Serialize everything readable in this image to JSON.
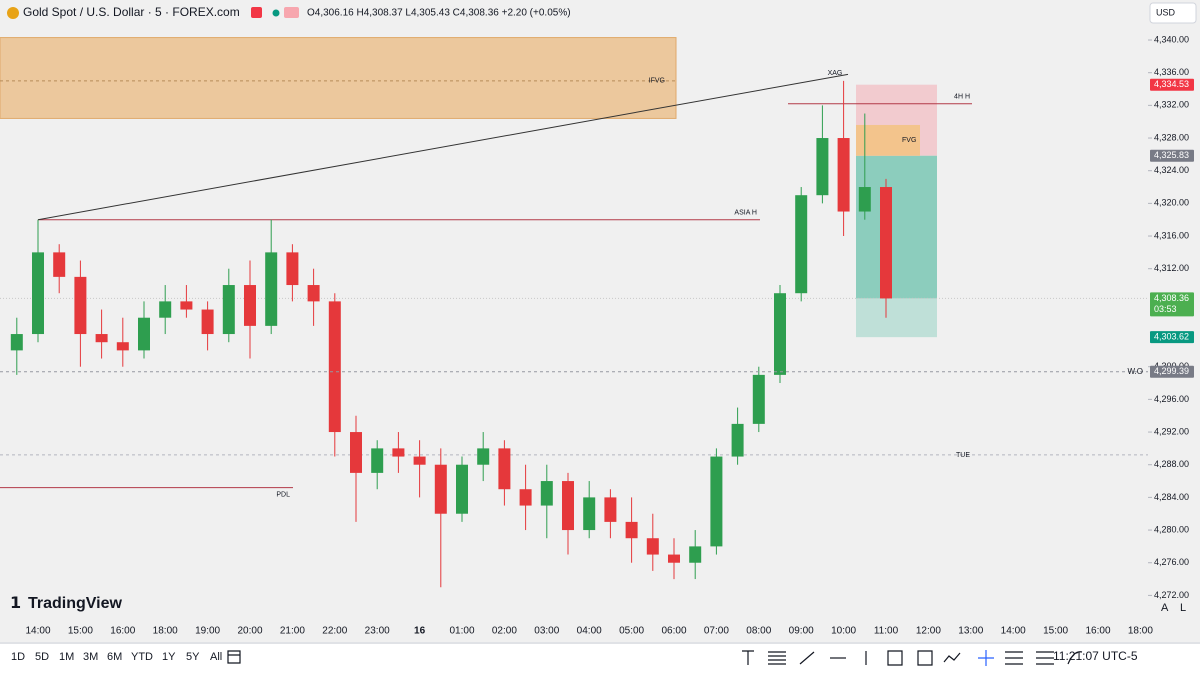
{
  "chart_data": {
    "type": "candlestick",
    "title": "Gold Spot / U.S. Dollar · 5 · FOREX.com",
    "ohlc_text": "O4,306.16 H4,308.37 L4,305.43 C4,308.36 +2.20 (+0.05%)",
    "currency": "USD",
    "logo": "TradingView",
    "up_color": "#2e9e4f",
    "down_color": "#e5383b",
    "x": [
      "13:30",
      "14:00",
      "14:30",
      "15:00",
      "15:30",
      "16:00",
      "16:30",
      "18:00",
      "18:30",
      "19:00",
      "19:30",
      "20:00",
      "20:30",
      "21:00",
      "21:30",
      "22:00",
      "22:30",
      "23:00",
      "23:30",
      "00:00",
      "00:30",
      "01:00",
      "01:30",
      "02:00",
      "02:30",
      "03:00",
      "03:30",
      "04:00",
      "04:30",
      "05:00",
      "05:30",
      "06:00",
      "06:30",
      "07:00",
      "07:30",
      "08:00",
      "08:30",
      "09:00",
      "09:30",
      "10:00",
      "10:30",
      "11:00"
    ],
    "open": [
      4302,
      4304,
      4314,
      4311,
      4304,
      4303,
      4302,
      4306,
      4308,
      4307,
      4304,
      4310,
      4305,
      4314,
      4310,
      4308,
      4292,
      4287,
      4290,
      4289,
      4288,
      4282,
      4288,
      4290,
      4285,
      4283,
      4286,
      4280,
      4284,
      4281,
      4279,
      4277,
      4276,
      4278,
      4289,
      4293,
      4299,
      4309,
      4321,
      4328,
      4319,
      4322
    ],
    "high": [
      4306,
      4318,
      4315,
      4313,
      4307,
      4306,
      4308,
      4310,
      4310,
      4308,
      4312,
      4313,
      4318,
      4315,
      4312,
      4309,
      4294,
      4291,
      4292,
      4291,
      4290,
      4289,
      4292,
      4291,
      4288,
      4288,
      4287,
      4286,
      4285,
      4284,
      4282,
      4279,
      4280,
      4290,
      4295,
      4300,
      4310,
      4322,
      4332,
      4335,
      4331,
      4323
    ],
    "low": [
      4299,
      4303,
      4309,
      4300,
      4301,
      4300,
      4301,
      4304,
      4306,
      4302,
      4303,
      4301,
      4304,
      4308,
      4305,
      4289,
      4281,
      4285,
      4287,
      4284,
      4273,
      4281,
      4286,
      4283,
      4280,
      4279,
      4277,
      4279,
      4279,
      4276,
      4275,
      4274,
      4274,
      4277,
      4288,
      4292,
      4298,
      4308,
      4320,
      4316,
      4318,
      4306
    ],
    "close": [
      4304,
      4314,
      4311,
      4304,
      4303,
      4302,
      4306,
      4308,
      4307,
      4304,
      4310,
      4305,
      4314,
      4310,
      4308,
      4292,
      4287,
      4290,
      4289,
      4288,
      4282,
      4288,
      4290,
      4285,
      4283,
      4286,
      4280,
      4284,
      4281,
      4279,
      4277,
      4276,
      4278,
      4289,
      4293,
      4299,
      4309,
      4321,
      4328,
      4319,
      4322,
      4308.36
    ],
    "xticks": [
      "14:00",
      "15:00",
      "16:00",
      "18:00",
      "19:00",
      "20:00",
      "21:00",
      "22:00",
      "23:00",
      "16",
      "01:00",
      "02:00",
      "03:00",
      "04:00",
      "05:00",
      "06:00",
      "07:00",
      "08:00",
      "09:00",
      "10:00",
      "11:00",
      "12:00",
      "13:00",
      "14:00",
      "15:00",
      "16:00",
      "18:00"
    ],
    "ylim": [
      4269.6,
      4344.9
    ],
    "yticks": [
      {
        "value": 4340,
        "label": "4,340.00"
      },
      {
        "value": 4336,
        "label": "4,336.00"
      },
      {
        "value": 4332,
        "label": "4,332.00"
      },
      {
        "value": 4328,
        "label": "4,328.00"
      },
      {
        "value": 4324,
        "label": "4,324.00"
      },
      {
        "value": 4320,
        "label": "4,320.00"
      },
      {
        "value": 4316,
        "label": "4,316.00"
      },
      {
        "value": 4312,
        "label": "4,312.00"
      },
      {
        "value": 4300,
        "label": "4,300.00"
      },
      {
        "value": 4296,
        "label": "4,296.00"
      },
      {
        "value": 4292,
        "label": "4,292.00"
      },
      {
        "value": 4288,
        "label": "4,288.00"
      },
      {
        "value": 4284,
        "label": "4,284.00"
      },
      {
        "value": 4280,
        "label": "4,280.00"
      },
      {
        "value": 4276,
        "label": "4,276.00"
      },
      {
        "value": 4272,
        "label": "4,272.00"
      }
    ],
    "price_labels": [
      {
        "value": 4334.53,
        "label": "4,334.53",
        "color": "#f23645"
      },
      {
        "value": 4325.83,
        "label": "4,325.83",
        "color": "#787b86"
      },
      {
        "value": 4308.36,
        "label": "4,308.36",
        "color": "#4caf50",
        "countdown": "03:53"
      },
      {
        "value": 4303.62,
        "label": "4,303.62",
        "color": "#089981"
      },
      {
        "value": 4299.39,
        "label": "4,299.39",
        "color": "#787b86"
      }
    ],
    "zones": {
      "ifvg": {
        "label": "IFVG",
        "top": 4340.3,
        "bottom": 4330.4,
        "mid": 4335
      },
      "fvg": {
        "label": "FVG",
        "top": 4329.6,
        "bottom": 4325.83
      }
    },
    "levels": [
      {
        "label": "ASIA H",
        "value": 4318
      },
      {
        "label": "PDL",
        "value": 4285.2
      },
      {
        "label": "4H H",
        "value": 4332.2
      },
      {
        "label": "TUE",
        "value": 4289.2
      },
      {
        "label": "W.O",
        "value": 4299.39
      }
    ],
    "trendline": {
      "label": "XAG",
      "start": 4318,
      "end": 4335.8
    },
    "ranges": [
      "1D",
      "5D",
      "1M",
      "3M",
      "6M",
      "YTD",
      "1Y",
      "5Y",
      "All"
    ],
    "clock": "11:21:07 UTC-5",
    "scale_buttons": [
      "A",
      "L"
    ]
  }
}
